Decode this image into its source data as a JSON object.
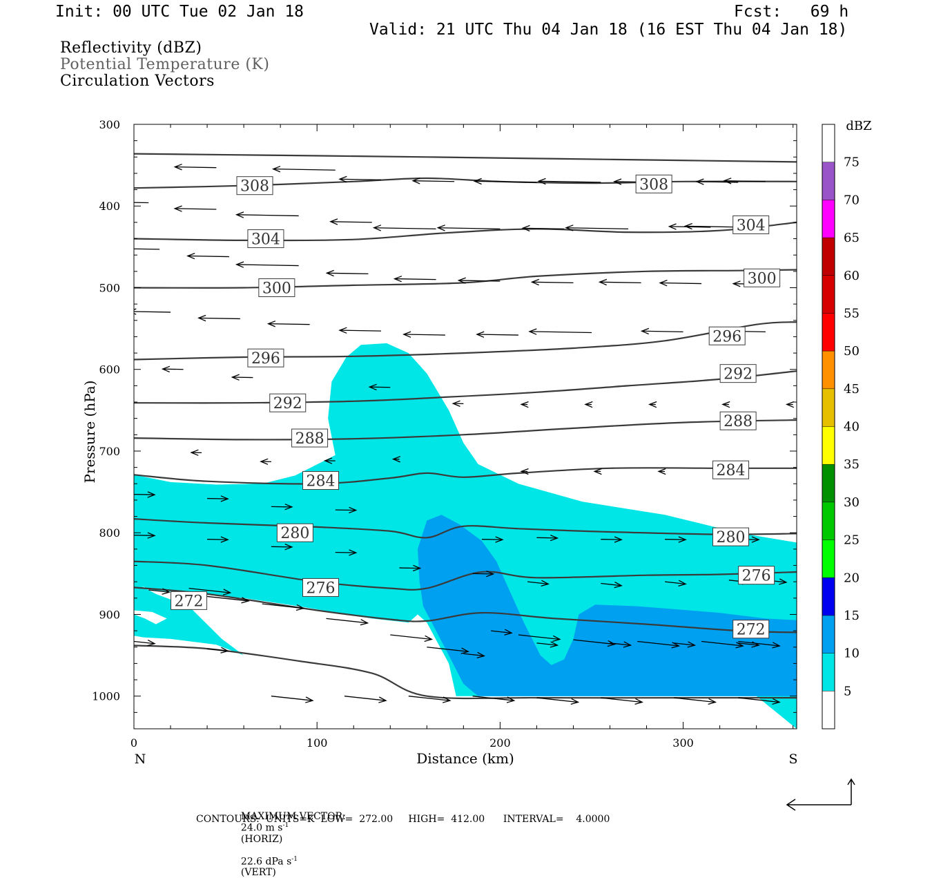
{
  "header": {
    "init": "Init: 00 UTC Tue 02 Jan 18",
    "fcst": "Fcst:   69 h",
    "valid": "Valid: 21 UTC Thu 04 Jan 18 (16 EST Thu 04 Jan 18)"
  },
  "legend": {
    "reflectivity": "Reflectivity (dBZ)",
    "theta": "Potential Temperature (K)",
    "vectors": "Circulation Vectors"
  },
  "footer": {
    "max_vector_label": "MAXIMUM VECTOR:",
    "max_horiz": "24.0 m s",
    "horiz_unit": "(HORIZ)",
    "max_vert": "22.6 dPa s",
    "vert_unit": "(VERT)",
    "exponent": "-1",
    "contours": "CONTOURS:  UNITS=K  LOW=  272.00     HIGH=  412.00      INTERVAL=    4.0000"
  },
  "colors": {
    "dbz5": "#00e6e6",
    "dbz10": "#00a0f0",
    "contour": "#3a3a3a",
    "vector": "#000000",
    "theta_legend": "#606060"
  },
  "chart_data": {
    "type": "cross-section",
    "xlabel": "Distance (km)",
    "ylabel": "Pressure (hPa)",
    "xlim": [
      0,
      362
    ],
    "ylim": [
      300,
      1040
    ],
    "y_scale": "linear, inverted",
    "x_ticks": [
      0,
      100,
      200,
      300
    ],
    "y_ticks": [
      300,
      400,
      500,
      600,
      700,
      800,
      900,
      1000
    ],
    "left_end_label": "N",
    "right_end_label": "S",
    "colorbar": {
      "title": "dBZ",
      "levels": [
        5,
        10,
        15,
        20,
        25,
        30,
        35,
        40,
        45,
        50,
        55,
        60,
        65,
        70,
        75
      ],
      "colors": [
        "#ffffff",
        "#00e6e6",
        "#00a0f0",
        "#0000f0",
        "#00ff00",
        "#00c800",
        "#009000",
        "#ffff00",
        "#e6c000",
        "#ff9000",
        "#ff0000",
        "#d60000",
        "#c00000",
        "#ff00ff",
        "#9955c8",
        "#ffffff"
      ]
    },
    "reflectivity_5dbz_region": [
      [
        0,
        729
      ],
      [
        20,
        738
      ],
      [
        45,
        741
      ],
      [
        70,
        740
      ],
      [
        88,
        730
      ],
      [
        95,
        722
      ],
      [
        110,
        705
      ],
      [
        106,
        660
      ],
      [
        108,
        615
      ],
      [
        116,
        585
      ],
      [
        124,
        570
      ],
      [
        138,
        568
      ],
      [
        150,
        580
      ],
      [
        160,
        605
      ],
      [
        172,
        650
      ],
      [
        180,
        690
      ],
      [
        188,
        716
      ],
      [
        210,
        740
      ],
      [
        245,
        762
      ],
      [
        290,
        778
      ],
      [
        330,
        800
      ],
      [
        362,
        812
      ],
      [
        362,
        1040
      ],
      [
        340,
        1000
      ],
      [
        200,
        1000
      ],
      [
        182,
        1000
      ],
      [
        176,
        1000
      ],
      [
        172,
        960
      ],
      [
        160,
        910
      ],
      [
        155,
        900
      ],
      [
        150,
        910
      ],
      [
        130,
        905
      ],
      [
        90,
        890
      ],
      [
        60,
        880
      ],
      [
        35,
        875
      ],
      [
        10,
        870
      ],
      [
        0,
        862
      ]
    ],
    "reflectivity_5dbz_tongue": [
      [
        0,
        860
      ],
      [
        12,
        875
      ],
      [
        30,
        890
      ],
      [
        48,
        930
      ],
      [
        60,
        950
      ],
      [
        45,
        937
      ],
      [
        20,
        930
      ],
      [
        5,
        928
      ],
      [
        0,
        926
      ]
    ],
    "reflectivity_white_gap": [
      [
        0,
        900
      ],
      [
        6,
        905
      ],
      [
        12,
        912
      ],
      [
        18,
        905
      ],
      [
        10,
        897
      ],
      [
        0,
        895
      ]
    ],
    "reflectivity_10dbz_region": [
      [
        160,
        785
      ],
      [
        168,
        778
      ],
      [
        178,
        790
      ],
      [
        190,
        810
      ],
      [
        198,
        835
      ],
      [
        205,
        870
      ],
      [
        213,
        910
      ],
      [
        222,
        950
      ],
      [
        228,
        962
      ],
      [
        235,
        955
      ],
      [
        240,
        930
      ],
      [
        243,
        900
      ],
      [
        252,
        888
      ],
      [
        275,
        890
      ],
      [
        320,
        898
      ],
      [
        345,
        905
      ],
      [
        362,
        907
      ],
      [
        362,
        1000
      ],
      [
        250,
        1000
      ],
      [
        195,
        1000
      ],
      [
        188,
        1000
      ],
      [
        180,
        985
      ],
      [
        172,
        950
      ],
      [
        165,
        920
      ],
      [
        158,
        890
      ],
      [
        156,
        860
      ],
      [
        155,
        820
      ]
    ],
    "theta_contours": [
      {
        "level": 308,
        "label_positions": [
          [
            66,
            375
          ],
          [
            284,
            373
          ]
        ],
        "points": [
          [
            0,
            336
          ],
          [
            80,
            338
          ],
          [
            160,
            340
          ],
          [
            260,
            343
          ],
          [
            362,
            346
          ]
        ]
      },
      {
        "level": 308,
        "label_positions": [],
        "points": [
          [
            0,
            378
          ],
          [
            60,
            375
          ],
          [
            120,
            370
          ],
          [
            160,
            366
          ],
          [
            200,
            370
          ],
          [
            250,
            372
          ],
          [
            300,
            370
          ],
          [
            362,
            370
          ]
        ]
      },
      {
        "level": 304,
        "label_positions": [
          [
            72,
            440
          ],
          [
            337,
            423
          ]
        ],
        "points": [
          [
            0,
            440
          ],
          [
            60,
            442
          ],
          [
            120,
            441
          ],
          [
            170,
            433
          ],
          [
            220,
            428
          ],
          [
            270,
            432
          ],
          [
            320,
            430
          ],
          [
            362,
            420
          ]
        ]
      },
      {
        "level": 300,
        "label_positions": [
          [
            78,
            500
          ],
          [
            343,
            488
          ]
        ],
        "points": [
          [
            0,
            500
          ],
          [
            60,
            500
          ],
          [
            120,
            497
          ],
          [
            180,
            494
          ],
          [
            220,
            486
          ],
          [
            280,
            480
          ],
          [
            330,
            479
          ],
          [
            362,
            478
          ]
        ]
      },
      {
        "level": 296,
        "label_positions": [
          [
            72,
            586
          ],
          [
            324,
            559
          ]
        ],
        "points": [
          [
            0,
            588
          ],
          [
            60,
            585
          ],
          [
            120,
            584
          ],
          [
            180,
            580
          ],
          [
            240,
            574
          ],
          [
            290,
            565
          ],
          [
            340,
            545
          ],
          [
            362,
            542
          ]
        ]
      },
      {
        "level": 292,
        "label_positions": [
          [
            84,
            641
          ],
          [
            330,
            605
          ]
        ],
        "points": [
          [
            0,
            641
          ],
          [
            60,
            641
          ],
          [
            120,
            639
          ],
          [
            170,
            634
          ],
          [
            220,
            628
          ],
          [
            270,
            620
          ],
          [
            320,
            612
          ],
          [
            362,
            602
          ]
        ]
      },
      {
        "level": 288,
        "label_positions": [
          [
            96,
            684
          ],
          [
            330,
            663
          ]
        ],
        "points": [
          [
            0,
            684
          ],
          [
            60,
            686
          ],
          [
            120,
            685
          ],
          [
            180,
            680
          ],
          [
            240,
            672
          ],
          [
            300,
            665
          ],
          [
            362,
            662
          ]
        ]
      },
      {
        "level": 284,
        "label_positions": [
          [
            102,
            736
          ],
          [
            326,
            723
          ]
        ],
        "points": [
          [
            0,
            729
          ],
          [
            40,
            737
          ],
          [
            100,
            740
          ],
          [
            140,
            733
          ],
          [
            160,
            727
          ],
          [
            180,
            732
          ],
          [
            210,
            727
          ],
          [
            260,
            721
          ],
          [
            320,
            721
          ],
          [
            362,
            721
          ]
        ]
      },
      {
        "level": 280,
        "label_positions": [
          [
            88,
            800
          ],
          [
            326,
            805
          ]
        ],
        "points": [
          [
            0,
            783
          ],
          [
            40,
            788
          ],
          [
            100,
            793
          ],
          [
            140,
            798
          ],
          [
            160,
            806
          ],
          [
            180,
            792
          ],
          [
            210,
            795
          ],
          [
            260,
            799
          ],
          [
            320,
            802
          ],
          [
            362,
            801
          ]
        ]
      },
      {
        "level": 276,
        "label_positions": [
          [
            102,
            867
          ],
          [
            340,
            852
          ]
        ],
        "points": [
          [
            0,
            835
          ],
          [
            40,
            840
          ],
          [
            100,
            860
          ],
          [
            140,
            868
          ],
          [
            160,
            868
          ],
          [
            190,
            848
          ],
          [
            220,
            855
          ],
          [
            280,
            852
          ],
          [
            320,
            851
          ],
          [
            362,
            848
          ]
        ]
      },
      {
        "level": 272,
        "label_positions": [
          [
            30,
            883
          ],
          [
            337,
            918
          ]
        ],
        "points": [
          [
            0,
            867
          ],
          [
            40,
            875
          ],
          [
            100,
            895
          ],
          [
            140,
            906
          ],
          [
            160,
            908
          ],
          [
            190,
            898
          ],
          [
            230,
            905
          ],
          [
            280,
            912
          ],
          [
            330,
            920
          ],
          [
            362,
            922
          ]
        ]
      },
      {
        "level": 272,
        "label_positions": [],
        "points": [
          [
            0,
            938
          ],
          [
            40,
            942
          ],
          [
            90,
            957
          ],
          [
            130,
            972
          ],
          [
            160,
            1000
          ],
          [
            220,
            1002
          ],
          [
            300,
            1002
          ],
          [
            362,
            1002
          ]
        ]
      }
    ],
    "circulation_vectors": [
      [
        0,
        350,
        -3
      ],
      [
        45,
        353,
        -2
      ],
      [
        110,
        356,
        -3
      ],
      [
        135,
        368,
        -2
      ],
      [
        175,
        370,
        -2
      ],
      [
        220,
        371,
        -3
      ],
      [
        255,
        371,
        -3
      ],
      [
        285,
        371,
        -2
      ],
      [
        330,
        371,
        -2
      ],
      [
        345,
        370,
        -2
      ],
      [
        8,
        396,
        -2
      ],
      [
        45,
        404,
        -2
      ],
      [
        90,
        412,
        -3
      ],
      [
        130,
        420,
        -2
      ],
      [
        165,
        428,
        -3
      ],
      [
        200,
        428,
        -3
      ],
      [
        235,
        428,
        -2
      ],
      [
        270,
        428,
        -3
      ],
      [
        315,
        426,
        -2
      ],
      [
        335,
        426,
        -3
      ],
      [
        14,
        453,
        -2
      ],
      [
        52,
        462,
        -2
      ],
      [
        90,
        473,
        -3
      ],
      [
        128,
        483,
        -2
      ],
      [
        165,
        490,
        -2
      ],
      [
        200,
        492,
        -2
      ],
      [
        240,
        494,
        -2
      ],
      [
        277,
        494,
        -2
      ],
      [
        310,
        495,
        -2
      ],
      [
        350,
        496,
        -2
      ],
      [
        20,
        530,
        -2
      ],
      [
        58,
        538,
        -2
      ],
      [
        96,
        545,
        -2
      ],
      [
        135,
        553,
        -2
      ],
      [
        170,
        558,
        -2
      ],
      [
        210,
        558,
        -2
      ],
      [
        250,
        555,
        -3
      ],
      [
        300,
        554,
        -2
      ],
      [
        345,
        554,
        -2
      ],
      [
        27,
        600,
        -1
      ],
      [
        65,
        610,
        -1
      ],
      [
        140,
        622,
        -1
      ],
      [
        180,
        642,
        -0.5
      ],
      [
        215,
        643,
        -0.3
      ],
      [
        250,
        643,
        -0.3
      ],
      [
        285,
        643,
        -0.3
      ],
      [
        325,
        643,
        -0.3
      ],
      [
        360,
        643,
        -0.3
      ],
      [
        37,
        702,
        -0.5
      ],
      [
        75,
        713,
        -0.5
      ],
      [
        110,
        712,
        -0.5
      ],
      [
        145,
        710,
        -0.3
      ],
      [
        215,
        725,
        -0.3
      ],
      [
        255,
        725,
        -0.3
      ],
      [
        290,
        725,
        -0.3
      ],
      [
        330,
        725,
        -0.3
      ],
      [
        0,
        753,
        1
      ],
      [
        40,
        758,
        1
      ],
      [
        75,
        768,
        1
      ],
      [
        110,
        772,
        1
      ],
      [
        0,
        803,
        1
      ],
      [
        40,
        808,
        1
      ],
      [
        75,
        817,
        1
      ],
      [
        110,
        824,
        1
      ],
      [
        30,
        868,
        2
      ],
      [
        0,
        933,
        1
      ],
      [
        40,
        942,
        1
      ],
      [
        8,
        870,
        1
      ],
      [
        40,
        878,
        2
      ],
      [
        70,
        887,
        2
      ],
      [
        105,
        905,
        2
      ],
      [
        140,
        925,
        2
      ],
      [
        160,
        940,
        2
      ],
      [
        180,
        948,
        1
      ],
      [
        210,
        925,
        2
      ],
      [
        240,
        931,
        2
      ],
      [
        275,
        933,
        2
      ],
      [
        310,
        933,
        2
      ],
      [
        330,
        933,
        2
      ],
      [
        75,
        1000,
        2
      ],
      [
        115,
        1000,
        2
      ],
      [
        150,
        1000,
        2
      ],
      [
        185,
        1000,
        2
      ],
      [
        220,
        1002,
        2
      ],
      [
        255,
        1002,
        2
      ],
      [
        295,
        1002,
        2
      ],
      [
        330,
        1002,
        2
      ],
      [
        145,
        843,
        1
      ],
      [
        185,
        850,
        1
      ],
      [
        215,
        860,
        1
      ],
      [
        255,
        862,
        1
      ],
      [
        290,
        860,
        1
      ],
      [
        325,
        858,
        1
      ],
      [
        345,
        858,
        1
      ],
      [
        195,
        920,
        1
      ],
      [
        220,
        935,
        1
      ],
      [
        260,
        935,
        1
      ],
      [
        295,
        935,
        1
      ],
      [
        330,
        935,
        1
      ],
      [
        190,
        808,
        1
      ],
      [
        220,
        806,
        1
      ],
      [
        255,
        808,
        1
      ],
      [
        290,
        808,
        1
      ],
      [
        330,
        808,
        1
      ]
    ]
  }
}
